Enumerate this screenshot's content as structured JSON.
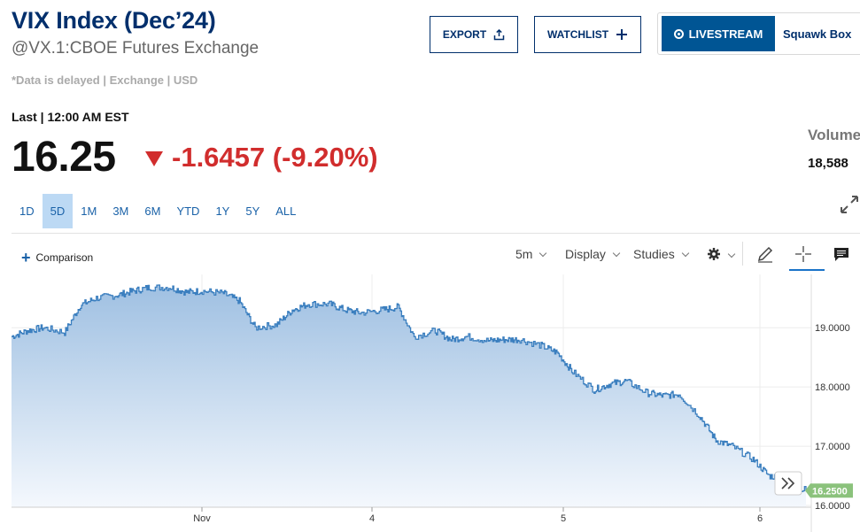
{
  "header": {
    "title": "VIX Index (Dec’24)",
    "subtitle": "@VX.1:CBOE Futures Exchange",
    "delayed_note": "*Data is delayed | Exchange | USD"
  },
  "actions": {
    "export_label": "EXPORT",
    "watchlist_label": "WATCHLIST",
    "livestream_label": "LIVESTREAM",
    "squawk_label": "Squawk Box"
  },
  "quote": {
    "last_label": "Last | 12:00 AM EST",
    "price": "16.25",
    "change": "-1.6457 (-9.20%)",
    "volume_label": "Volume",
    "volume_value": "18,588"
  },
  "ranges": [
    "1D",
    "5D",
    "1M",
    "3M",
    "6M",
    "YTD",
    "1Y",
    "5Y",
    "ALL"
  ],
  "active_range": "5D",
  "toolbar": {
    "comparison_label": "Comparison",
    "interval_label": "5m",
    "display_label": "Display",
    "studies_label": "Studies"
  },
  "colors": {
    "brand_navy": "#002f6c",
    "accent_blue": "#1a62a8",
    "negative_red": "#d12d2d",
    "price_tag_green": "#8bc27c",
    "line_blue": "#3b7fbf"
  },
  "icons": {
    "export": "share-icon",
    "watchlist": "plus-icon",
    "live": "live-dot-icon",
    "expand": "expand-icon",
    "settings": "gear-icon",
    "draw": "pencil-icon",
    "crosshair": "crosshair-icon",
    "comment": "comment-icon",
    "scroll": "double-chevron-right-icon"
  },
  "chart_data": {
    "type": "area",
    "x_ticks": [
      "Nov",
      "4",
      "5",
      "6"
    ],
    "y_ticks": [
      "19.0000",
      "18.0000",
      "17.0000",
      "16.0000"
    ],
    "ylim": [
      15.97,
      19.9
    ],
    "grid": true,
    "last_value_label": "16.2500",
    "x": [
      0,
      0.3,
      0.6,
      1.0,
      1.3,
      1.6,
      2.0,
      2.3,
      2.6,
      3.0,
      3.3,
      3.6,
      4.0,
      4.3,
      4.6,
      5.0,
      5.3,
      5.6,
      6.0,
      6.3,
      6.6,
      7.0,
      7.3,
      7.6,
      8.0,
      8.3,
      8.6,
      9.0,
      9.3,
      9.6,
      10.0,
      10.3,
      10.6,
      11.0,
      11.3,
      11.6,
      12.0,
      12.3,
      12.6,
      13.0,
      13.3,
      13.6,
      14.0,
      14.3,
      14.6,
      15.0
    ],
    "values": [
      18.85,
      18.95,
      19.0,
      18.92,
      19.38,
      19.5,
      19.55,
      19.62,
      19.68,
      19.68,
      19.6,
      19.62,
      19.58,
      19.45,
      19.0,
      19.05,
      19.3,
      19.4,
      19.4,
      19.3,
      19.25,
      19.3,
      19.35,
      18.85,
      18.95,
      18.8,
      18.85,
      18.78,
      18.8,
      18.8,
      18.7,
      18.58,
      18.25,
      17.95,
      18.05,
      18.1,
      17.9,
      17.85,
      17.88,
      17.5,
      17.1,
      17.0,
      16.78,
      16.5,
      16.45,
      16.25
    ]
  }
}
